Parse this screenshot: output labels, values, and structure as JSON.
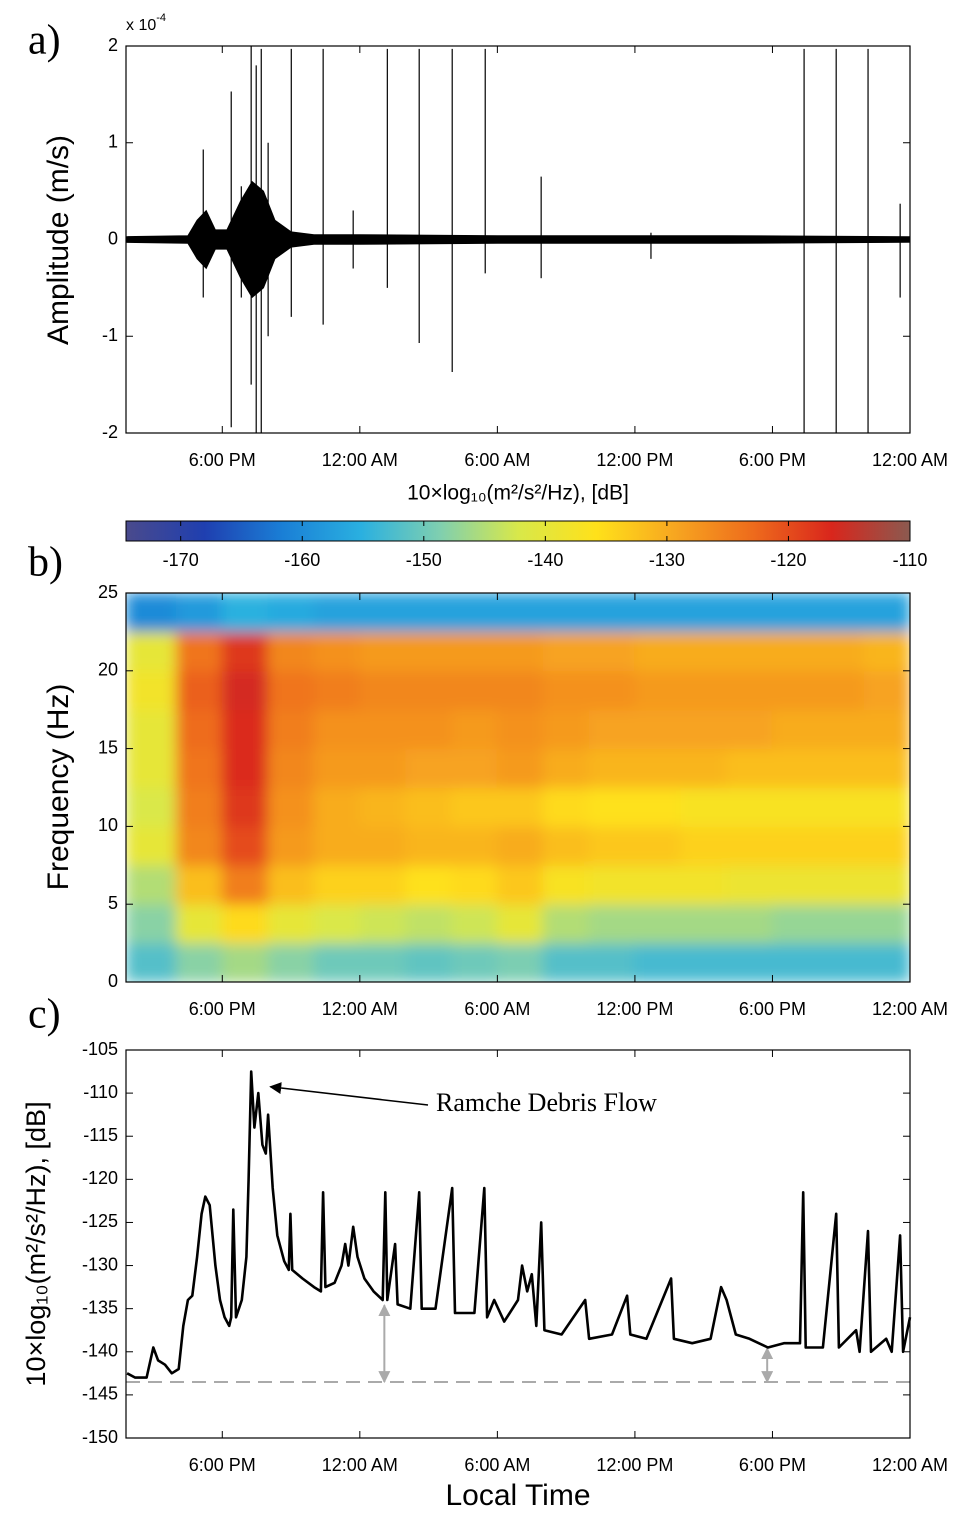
{
  "chart_data": [
    {
      "type": "waveform",
      "label": "a)",
      "ylabel": "Amplitude (m/s)",
      "multiplier": {
        "base": "x 10",
        "exponent": "-4"
      },
      "xlim": [
        13.8,
        48
      ],
      "ylim": [
        -2,
        2
      ],
      "yticks": [
        -2,
        -1,
        0,
        1,
        2
      ],
      "xticks": [
        {
          "value": 18,
          "label": "6:00 PM"
        },
        {
          "value": 24,
          "label": "12:00 AM"
        },
        {
          "value": 30,
          "label": "6:00 AM"
        },
        {
          "value": 36,
          "label": "12:00 PM"
        },
        {
          "value": 42,
          "label": "6:00 PM"
        },
        {
          "value": 48,
          "label": "12:00 AM"
        }
      ],
      "color": "#000000",
      "envelope": {
        "x": [
          13.8,
          16.5,
          16.9,
          17.3,
          17.7,
          18.2,
          18.8,
          19.3,
          19.8,
          20.3,
          21,
          22,
          24,
          30,
          40,
          48
        ],
        "upper": [
          0.03,
          0.04,
          0.2,
          0.3,
          0.1,
          0.1,
          0.4,
          0.6,
          0.5,
          0.2,
          0.08,
          0.05,
          0.05,
          0.04,
          0.04,
          0.03
        ],
        "lower": [
          -0.03,
          -0.04,
          -0.2,
          -0.3,
          -0.1,
          -0.1,
          -0.4,
          -0.6,
          -0.5,
          -0.2,
          -0.08,
          -0.05,
          -0.05,
          -0.04,
          -0.04,
          -0.03
        ]
      },
      "spikes": {
        "x": [
          17.17,
          18.39,
          18.83,
          19.26,
          19.48,
          19.7,
          20.0,
          21.01,
          22.4,
          23.71,
          25.2,
          26.59,
          28.03,
          29.47,
          31.91,
          36.7,
          43.38,
          44.78,
          46.17,
          47.57
        ],
        "top": [
          0.93,
          1.53,
          0.55,
          2.0,
          1.8,
          1.97,
          1.0,
          1.97,
          1.97,
          0.3,
          1.97,
          1.97,
          1.97,
          1.97,
          0.65,
          0.07,
          1.97,
          1.97,
          1.97,
          0.37
        ],
        "bottom": [
          -0.6,
          -1.94,
          -0.6,
          -1.5,
          -2.0,
          -2.0,
          -1.0,
          -0.8,
          -0.88,
          -0.3,
          -0.5,
          -1.07,
          -1.37,
          -0.35,
          -0.4,
          -0.2,
          -2.0,
          -2.0,
          -2.0,
          -0.6
        ]
      }
    },
    {
      "type": "heatmap",
      "label": "b)",
      "ylabel": "Frequency (Hz)",
      "colorbar_label": "10×log₁₀(m²/s²/Hz), [dB]",
      "clim": [
        -174.5,
        -110
      ],
      "cticks": [
        -170,
        -160,
        -150,
        -140,
        -130,
        -120,
        -110
      ],
      "colormap": [
        "#4a4a8c",
        "#1f3fb0",
        "#1a7fd6",
        "#2ab0e0",
        "#7fcfb0",
        "#d8e84a",
        "#ffe11a",
        "#f7a620",
        "#ee6b1c",
        "#d9261c",
        "#8b5a50"
      ],
      "xlim": [
        13.8,
        48
      ],
      "ylim": [
        0,
        25
      ],
      "yticks": [
        0,
        5,
        10,
        15,
        20,
        25
      ],
      "xticks": [
        {
          "value": 18,
          "label": "6:00 PM"
        },
        {
          "value": 24,
          "label": "12:00 AM"
        },
        {
          "value": 30,
          "label": "6:00 AM"
        },
        {
          "value": 36,
          "label": "12:00 PM"
        },
        {
          "value": 42,
          "label": "6:00 PM"
        },
        {
          "value": 48,
          "label": "12:00 AM"
        }
      ],
      "x_edges": [
        13.8,
        16,
        18,
        20,
        22,
        24,
        26,
        28,
        30,
        32,
        34,
        36,
        38,
        40,
        42,
        44,
        46,
        48
      ],
      "y_edges": [
        0,
        2.5,
        5,
        7.5,
        10,
        12.5,
        15,
        17.5,
        20,
        22.5,
        25
      ],
      "z": [
        [
          -152,
          -148,
          -145,
          -140,
          -142,
          -140,
          -140,
          -138,
          -140,
          -160
        ],
        [
          -148,
          -140,
          -132,
          -126,
          -125,
          -124,
          -123,
          -122,
          -124,
          -158
        ],
        [
          -146,
          -135,
          -125,
          -120,
          -118,
          -117,
          -117,
          -116,
          -118,
          -155
        ],
        [
          -148,
          -140,
          -132,
          -128,
          -127,
          -126,
          -125,
          -124,
          -126,
          -156
        ],
        [
          -150,
          -142,
          -134,
          -130,
          -130,
          -128,
          -127,
          -125,
          -127,
          -157
        ],
        [
          -150,
          -143,
          -134,
          -130,
          -131,
          -128,
          -127,
          -126,
          -128,
          -157
        ],
        [
          -151,
          -144,
          -136,
          -131,
          -132,
          -129,
          -127,
          -126,
          -128,
          -157
        ],
        [
          -150,
          -143,
          -135,
          -131,
          -133,
          -129,
          -128,
          -126,
          -128,
          -157
        ],
        [
          -149,
          -140,
          -133,
          -130,
          -133,
          -128,
          -127,
          -126,
          -128,
          -157
        ],
        [
          -152,
          -145,
          -137,
          -132,
          -135,
          -130,
          -128,
          -127,
          -129,
          -157
        ],
        [
          -152,
          -146,
          -138,
          -133,
          -136,
          -131,
          -129,
          -127,
          -129,
          -157
        ],
        [
          -153,
          -146,
          -138,
          -133,
          -136,
          -131,
          -129,
          -128,
          -130,
          -157
        ],
        [
          -153,
          -146,
          -138,
          -134,
          -137,
          -131,
          -129,
          -128,
          -130,
          -157
        ],
        [
          -153,
          -146,
          -139,
          -134,
          -137,
          -132,
          -129,
          -128,
          -130,
          -157
        ],
        [
          -153,
          -147,
          -139,
          -134,
          -137,
          -132,
          -130,
          -128,
          -130,
          -157
        ],
        [
          -153,
          -147,
          -139,
          -134,
          -137,
          -132,
          -130,
          -128,
          -130,
          -157
        ],
        [
          -153,
          -147,
          -139,
          -134,
          -137,
          -132,
          -130,
          -129,
          -131,
          -157
        ]
      ]
    },
    {
      "type": "line",
      "label": "c)",
      "ylabel": "10×log₁₀(m²/s²/Hz), [dB]",
      "xlabel": "Local Time",
      "xlim": [
        13.8,
        48
      ],
      "ylim": [
        -150,
        -105
      ],
      "yticks": [
        -150,
        -145,
        -140,
        -135,
        -130,
        -125,
        -120,
        -115,
        -110,
        -105
      ],
      "xticks": [
        {
          "value": 18,
          "label": "6:00 PM"
        },
        {
          "value": 24,
          "label": "12:00 AM"
        },
        {
          "value": 30,
          "label": "6:00 AM"
        },
        {
          "value": 36,
          "label": "12:00 PM"
        },
        {
          "value": 42,
          "label": "6:00 PM"
        },
        {
          "value": 48,
          "label": "12:00 AM"
        }
      ],
      "color": "#000000",
      "x": [
        13.85,
        14.2,
        14.7,
        14.99,
        15.2,
        15.5,
        15.8,
        16.1,
        16.3,
        16.5,
        16.69,
        16.9,
        17.1,
        17.26,
        17.45,
        17.7,
        17.9,
        18.1,
        18.3,
        18.39,
        18.48,
        18.6,
        18.85,
        19.05,
        19.15,
        19.26,
        19.4,
        19.57,
        19.75,
        19.9,
        20.0,
        20.2,
        20.4,
        20.7,
        20.9,
        20.97,
        21.05,
        21.5,
        22.0,
        22.3,
        22.4,
        22.5,
        22.9,
        23.2,
        23.36,
        23.5,
        23.71,
        23.9,
        24.2,
        24.6,
        25.0,
        25.11,
        25.2,
        25.54,
        25.65,
        26.2,
        26.59,
        26.7,
        27.3,
        28.03,
        28.15,
        29.0,
        29.43,
        29.55,
        29.86,
        30.3,
        30.9,
        31.08,
        31.3,
        31.5,
        31.7,
        31.91,
        32.05,
        32.8,
        33.83,
        34.0,
        35.0,
        35.66,
        35.8,
        36.5,
        37.58,
        37.7,
        38.5,
        39.3,
        39.76,
        40.0,
        40.4,
        41.0,
        41.8,
        42.5,
        43.2,
        43.34,
        43.45,
        44.2,
        44.78,
        44.9,
        45.65,
        45.8,
        46.17,
        46.3,
        46.96,
        47.2,
        47.57,
        47.7,
        48.0
      ],
      "values": [
        -142.5,
        -143,
        -143,
        -139.5,
        -141,
        -141.5,
        -142.5,
        -142,
        -137,
        -134,
        -133.5,
        -129,
        -124,
        -122,
        -123,
        -130,
        -134,
        -136,
        -137,
        -136,
        -123.5,
        -136,
        -134,
        -129,
        -120,
        -107.5,
        -114,
        -110,
        -116,
        -117,
        -112.5,
        -121,
        -126.5,
        -129.5,
        -130.5,
        -124,
        -130.5,
        -131.5,
        -132.5,
        -133,
        -121.5,
        -132.5,
        -132,
        -130,
        -127.5,
        -130,
        -125.5,
        -129,
        -131.5,
        -133,
        -134,
        -121.5,
        -134,
        -127.5,
        -134.5,
        -135,
        -121.5,
        -135,
        -135,
        -121,
        -135.5,
        -135.5,
        -121,
        -136,
        -134,
        -136.5,
        -134,
        -130,
        -133,
        -131,
        -137,
        -125,
        -137.5,
        -138,
        -134,
        -138.5,
        -138,
        -133.5,
        -138,
        -138.5,
        -131.5,
        -138.5,
        -139,
        -138.5,
        -132.5,
        -134,
        -138,
        -138.5,
        -139.5,
        -139,
        -139,
        -121.5,
        -139.5,
        -139.5,
        -124,
        -139.5,
        -137.5,
        -140,
        -126,
        -140,
        -138.5,
        -140,
        -126.5,
        -140,
        -136
      ],
      "reference_line": -143.5,
      "reference_color": "#aaaaaa",
      "arrows": [
        {
          "x": 25.07,
          "from": -143.5,
          "to": -134.6
        },
        {
          "x": 41.77,
          "from": -143.5,
          "to": -139.6
        }
      ],
      "annotation": {
        "text": "Ramche Debris Flow",
        "x": 19.75,
        "y": -109.5
      }
    }
  ]
}
